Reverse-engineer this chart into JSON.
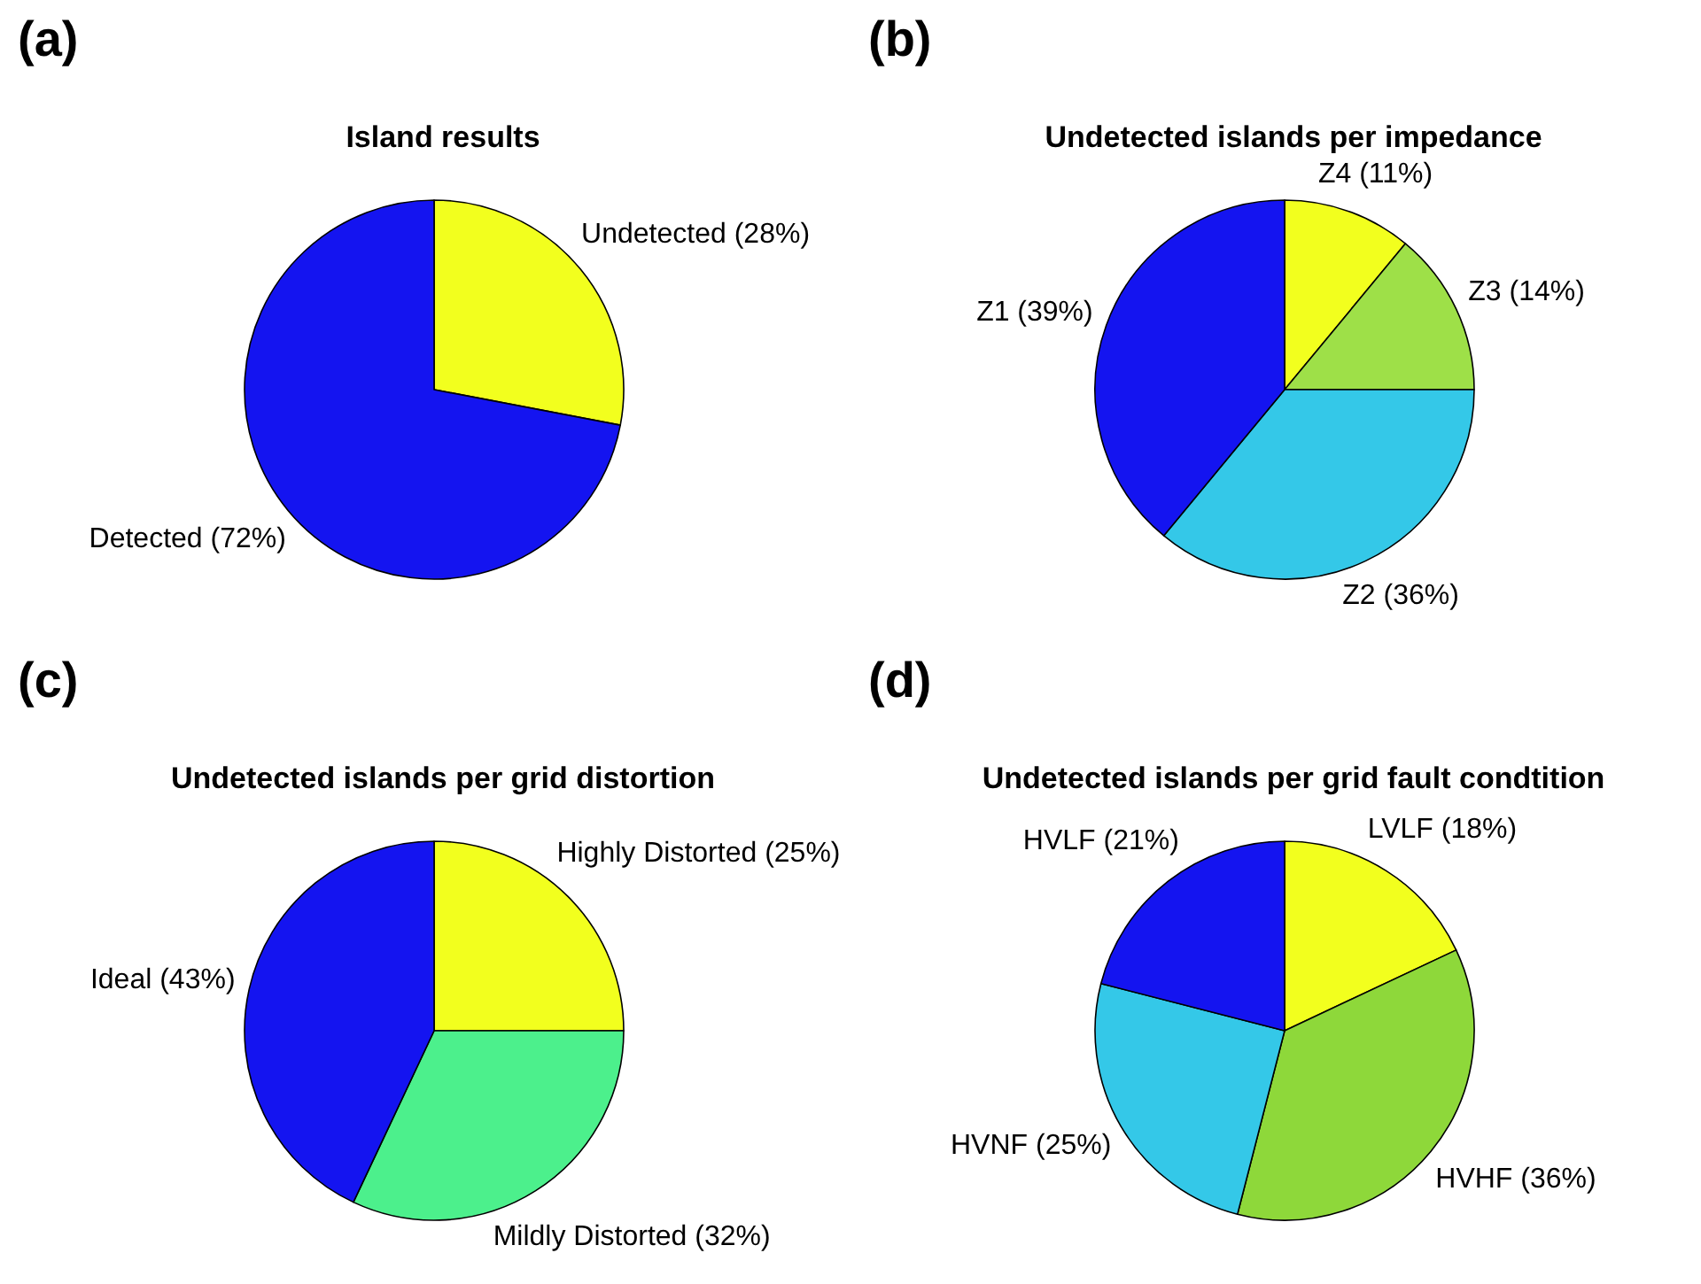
{
  "chart_data": [
    {
      "type": "pie",
      "title": "Island results",
      "annotations": [
        "(a)"
      ],
      "categories": [
        "Undetected (28%)",
        "Detected (72%)"
      ],
      "values": [
        28,
        72
      ],
      "colors": [
        "#f2ff1e",
        "#1414f0"
      ],
      "legend": false
    },
    {
      "type": "pie",
      "title": "Undetected islands per impedance",
      "annotations": [
        "(b)"
      ],
      "categories": [
        "Z4 (11%)",
        "Z3 (14%)",
        "Z2 (36%)",
        "Z1 (39%)"
      ],
      "values": [
        11,
        14,
        36,
        39
      ],
      "colors": [
        "#f2ff1e",
        "#9ee048",
        "#34c8e8",
        "#1414f0"
      ],
      "legend": false
    },
    {
      "type": "pie",
      "title": "Undetected islands per grid distortion",
      "annotations": [
        "(c)"
      ],
      "categories": [
        "Highly Distorted (25%)",
        "Mildly Distorted (32%)",
        "Ideal (43%)"
      ],
      "values": [
        25,
        32,
        43
      ],
      "colors": [
        "#f2ff1e",
        "#4cf08c",
        "#1414f0"
      ],
      "legend": false
    },
    {
      "type": "pie",
      "title": "Undetected islands per grid fault condtition",
      "annotations": [
        "(d)"
      ],
      "categories": [
        "LVLF (18%)",
        "HVHF (36%)",
        "HVNF (25%)",
        "HVLF (21%)"
      ],
      "values": [
        18,
        36,
        25,
        21
      ],
      "colors": [
        "#f2ff1e",
        "#8ed83a",
        "#34c8e8",
        "#1414f0"
      ],
      "legend": false
    }
  ]
}
